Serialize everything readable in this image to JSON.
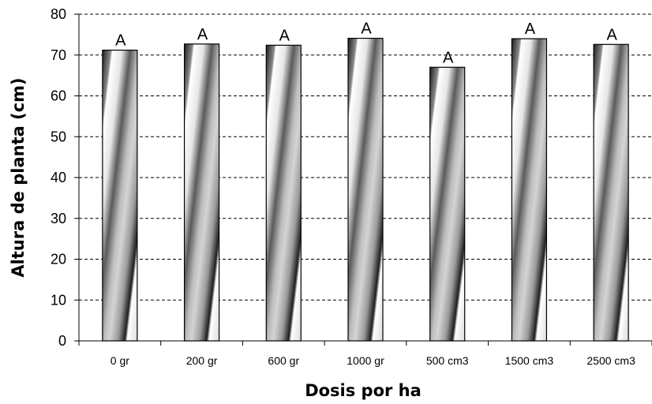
{
  "chart_data": {
    "type": "bar",
    "title": "",
    "xlabel": "Dosis  por ha",
    "ylabel": "Altura de planta  (cm)",
    "ylim": [
      0,
      80
    ],
    "yticks": [
      0,
      10,
      20,
      30,
      40,
      50,
      60,
      70,
      80
    ],
    "grid": true,
    "legend": "none",
    "categories": [
      "0 gr",
      "200 gr",
      "600 gr",
      "1000 gr",
      "500 cm3",
      "1500 cm3",
      "2500 cm3"
    ],
    "values": [
      71.2,
      72.7,
      72.4,
      74.1,
      67.0,
      74.0,
      72.6
    ],
    "labels": [
      "A",
      "A",
      "A",
      "A",
      "A",
      "A",
      "A"
    ]
  }
}
